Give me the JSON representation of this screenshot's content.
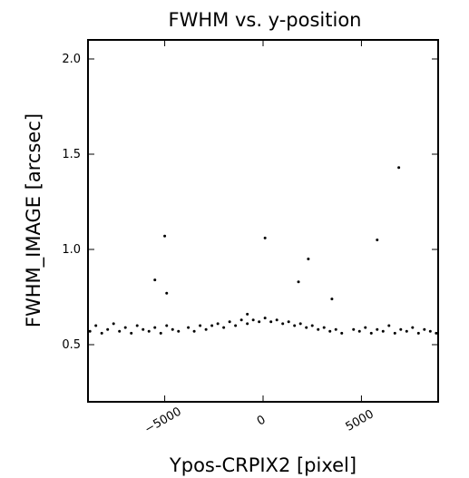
{
  "chart_data": {
    "type": "scatter",
    "title": "FWHM vs. y-position",
    "xlabel": "Ypos-CRPIX2 [pixel]",
    "ylabel": "FWHM_IMAGE [arcsec]",
    "xlim": [
      -8900,
      8900
    ],
    "ylim": [
      0.2,
      2.1
    ],
    "xticks": [
      -5000,
      0,
      5000
    ],
    "xtick_labels": [
      "−5000",
      "0",
      "5000"
    ],
    "yticks": [
      0.5,
      1.0,
      1.5,
      2.0
    ],
    "ytick_labels": [
      "0.5",
      "1.0",
      "1.5",
      "2.0"
    ],
    "grid": false,
    "marker_color": "#000000",
    "series": [
      {
        "points": [
          [
            -8800,
            0.57
          ],
          [
            -8500,
            0.6
          ],
          [
            -8200,
            0.56
          ],
          [
            -7900,
            0.58
          ],
          [
            -7600,
            0.61
          ],
          [
            -7300,
            0.57
          ],
          [
            -7000,
            0.59
          ],
          [
            -6700,
            0.56
          ],
          [
            -6400,
            0.6
          ],
          [
            -6100,
            0.58
          ],
          [
            -5800,
            0.57
          ],
          [
            -5500,
            0.59
          ],
          [
            -5200,
            0.56
          ],
          [
            -4900,
            0.6
          ],
          [
            -4600,
            0.58
          ],
          [
            -4300,
            0.57
          ],
          [
            -3800,
            0.59
          ],
          [
            -3500,
            0.57
          ],
          [
            -3200,
            0.6
          ],
          [
            -2900,
            0.58
          ],
          [
            -2600,
            0.6
          ],
          [
            -2300,
            0.61
          ],
          [
            -2000,
            0.59
          ],
          [
            -1700,
            0.62
          ],
          [
            -1400,
            0.6
          ],
          [
            -1100,
            0.63
          ],
          [
            -800,
            0.61
          ],
          [
            -500,
            0.63
          ],
          [
            -200,
            0.62
          ],
          [
            100,
            0.64
          ],
          [
            400,
            0.62
          ],
          [
            700,
            0.63
          ],
          [
            1000,
            0.61
          ],
          [
            1300,
            0.62
          ],
          [
            1600,
            0.6
          ],
          [
            1900,
            0.61
          ],
          [
            2200,
            0.59
          ],
          [
            2500,
            0.6
          ],
          [
            2800,
            0.58
          ],
          [
            3100,
            0.59
          ],
          [
            3400,
            0.57
          ],
          [
            3700,
            0.58
          ],
          [
            4000,
            0.56
          ],
          [
            4600,
            0.58
          ],
          [
            4900,
            0.57
          ],
          [
            5200,
            0.59
          ],
          [
            5500,
            0.56
          ],
          [
            5800,
            0.58
          ],
          [
            6100,
            0.57
          ],
          [
            6400,
            0.6
          ],
          [
            6700,
            0.56
          ],
          [
            7000,
            0.58
          ],
          [
            7300,
            0.57
          ],
          [
            7600,
            0.59
          ],
          [
            7900,
            0.56
          ],
          [
            8200,
            0.58
          ],
          [
            8500,
            0.57
          ],
          [
            8800,
            0.56
          ],
          [
            -5500,
            0.84
          ],
          [
            -5000,
            1.07
          ],
          [
            -4900,
            0.77
          ],
          [
            100,
            1.06
          ],
          [
            1800,
            0.83
          ],
          [
            2300,
            0.95
          ],
          [
            3500,
            0.74
          ],
          [
            5800,
            1.05
          ],
          [
            6900,
            1.43
          ],
          [
            -800,
            0.66
          ]
        ]
      }
    ]
  }
}
